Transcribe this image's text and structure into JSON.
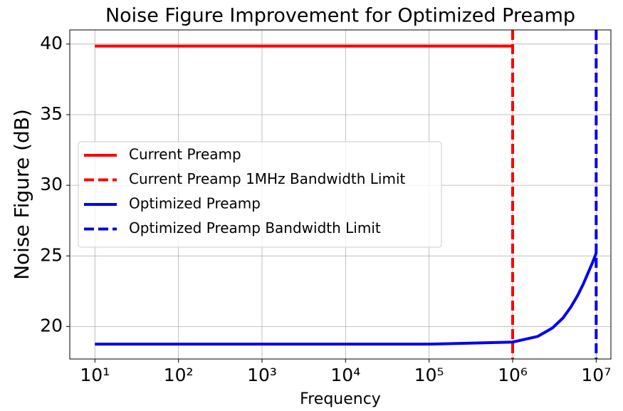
{
  "chart_data": {
    "type": "line",
    "title": "Noise Figure Improvement for Optimized Preamp",
    "xlabel": "Frequency",
    "ylabel": "Noise Figure (dB)",
    "xscale": "log",
    "xlim": [
      5,
      15000000
    ],
    "ylim": [
      17.7,
      41
    ],
    "xticks": [
      {
        "value": 10,
        "label": "10¹"
      },
      {
        "value": 100,
        "label": "10²"
      },
      {
        "value": 1000,
        "label": "10³"
      },
      {
        "value": 10000,
        "label": "10⁴"
      },
      {
        "value": 100000,
        "label": "10⁵"
      },
      {
        "value": 1000000,
        "label": "10⁶"
      },
      {
        "value": 10000000,
        "label": "10⁷"
      }
    ],
    "yticks": [
      20,
      25,
      30,
      35,
      40
    ],
    "grid": true,
    "legend": "center left",
    "series": [
      {
        "name": "Current Preamp",
        "color": "#ff0000",
        "x": [
          10,
          1000000
        ],
        "values": [
          39.85,
          39.85
        ]
      },
      {
        "name": "Current Preamp 1MHz Bandwidth Limit",
        "color": "#ff0000",
        "dashed": true,
        "x_value": 1000000
      },
      {
        "name": "Optimized Preamp",
        "color": "#0000ee",
        "x": [
          10,
          100,
          1000,
          10000,
          100000,
          1000000,
          2000000,
          3000000,
          4000000,
          5000000,
          6000000,
          7000000,
          8000000,
          9000000,
          10000000
        ],
        "values": [
          18.75,
          18.75,
          18.75,
          18.75,
          18.75,
          18.9,
          19.3,
          19.9,
          20.6,
          21.4,
          22.2,
          23.0,
          23.8,
          24.5,
          25.2
        ]
      },
      {
        "name": "Optimized Preamp Bandwidth Limit",
        "color": "#0000ee",
        "dashed": true,
        "x_value": 10000000
      }
    ]
  }
}
